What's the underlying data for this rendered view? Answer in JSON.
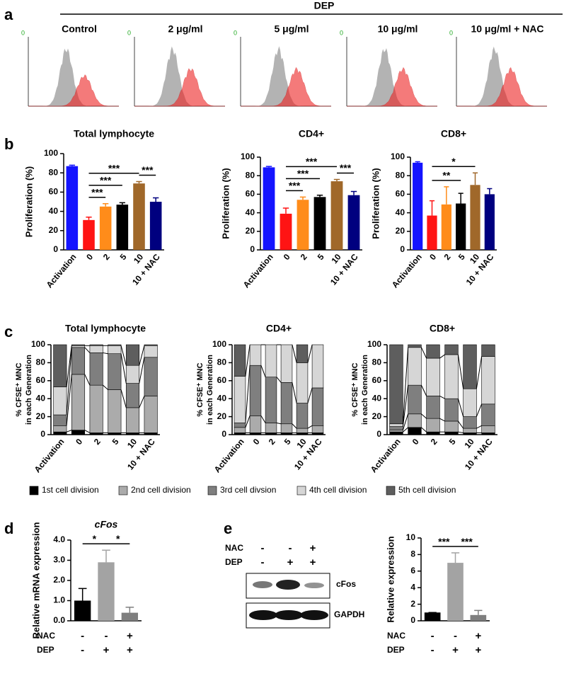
{
  "panel_letters": [
    "a",
    "b",
    "c",
    "d",
    "e"
  ],
  "histograms": {
    "group": "DEP",
    "corner_label": "0",
    "panels": [
      "Control",
      "2 μg/ml",
      "5 μg/ml",
      "10 μg/ml",
      "10 μg/ml + NAC"
    ]
  },
  "blot": {
    "conditions": [
      {
        "name": "NAC",
        "values": [
          "-",
          "-",
          "+"
        ]
      },
      {
        "name": "DEP",
        "values": [
          "-",
          "+",
          "+"
        ]
      }
    ],
    "bands": [
      "cFos",
      "GAPDH"
    ]
  },
  "chart_data": [
    {
      "type": "bar",
      "title": "Total lymphocyte",
      "ylabel": "Proliferation (%)",
      "categories": [
        "Activation",
        "0",
        "2",
        "5",
        "10",
        "10 + NAC"
      ],
      "values": [
        87,
        31,
        45,
        47,
        69,
        50
      ],
      "errors": [
        1,
        3,
        3,
        2,
        2,
        4
      ],
      "colors": [
        "#1414ff",
        "#ff1414",
        "#ff8c1a",
        "#000000",
        "#a0682a",
        "#00007f"
      ],
      "ylim": [
        0,
        100
      ],
      "yticks": [
        0,
        20,
        40,
        60,
        80,
        100
      ],
      "significance": [
        {
          "label": "***",
          "from": 1,
          "to": 2
        },
        {
          "label": "***",
          "from": 1,
          "to": 3
        },
        {
          "label": "***",
          "from": 1,
          "to": 4
        },
        {
          "label": "***",
          "from": 4,
          "to": 5
        }
      ]
    },
    {
      "type": "bar",
      "title": "CD4+",
      "ylabel": "Proliferation (%)",
      "categories": [
        "Activation",
        "0",
        "2",
        "5",
        "10",
        "10 + NAC"
      ],
      "values": [
        89,
        39,
        54,
        57,
        74,
        59
      ],
      "errors": [
        1,
        6,
        3,
        2,
        2,
        4
      ],
      "colors": [
        "#1414ff",
        "#ff1414",
        "#ff8c1a",
        "#000000",
        "#a0682a",
        "#00007f"
      ],
      "ylim": [
        0,
        100
      ],
      "yticks": [
        0,
        20,
        40,
        60,
        80,
        100
      ],
      "significance": [
        {
          "label": "***",
          "from": 1,
          "to": 2
        },
        {
          "label": "***",
          "from": 1,
          "to": 3
        },
        {
          "label": "***",
          "from": 1,
          "to": 4
        },
        {
          "label": "***",
          "from": 4,
          "to": 5
        }
      ]
    },
    {
      "type": "bar",
      "title": "CD8+",
      "ylabel": "Proliferation (%)",
      "categories": [
        "Activation",
        "0",
        "2",
        "5",
        "10",
        "10 + NAC"
      ],
      "values": [
        94,
        37,
        49,
        50,
        70,
        60
      ],
      "errors": [
        1,
        16,
        19,
        11,
        13,
        6
      ],
      "colors": [
        "#1414ff",
        "#ff1414",
        "#ff8c1a",
        "#000000",
        "#a0682a",
        "#00007f"
      ],
      "ylim": [
        0,
        100
      ],
      "yticks": [
        0,
        20,
        40,
        60,
        80,
        100
      ],
      "significance": [
        {
          "label": "**",
          "from": 1,
          "to": 3
        },
        {
          "label": "*",
          "from": 1,
          "to": 4
        }
      ]
    },
    {
      "type": "stacked_bar",
      "title": "Total lymphocyte",
      "ylabel": [
        "% CFSE⁺ MNC",
        "in each Generation"
      ],
      "categories": [
        "Activation",
        "0",
        "2",
        "5",
        "10",
        "10 + NAC"
      ],
      "ylim": [
        0,
        100
      ],
      "yticks": [
        0,
        20,
        40,
        60,
        80,
        100
      ],
      "series": [
        {
          "name": "1st cell division",
          "color": "#000000",
          "values": [
            3,
            5,
            2,
            2,
            2,
            2
          ]
        },
        {
          "name": "2nd cell division",
          "color": "#ababab",
          "values": [
            7,
            62,
            53,
            48,
            28,
            41
          ]
        },
        {
          "name": "3rd cell divsion",
          "color": "#7f7f7f",
          "values": [
            12,
            30,
            36,
            40,
            27,
            43
          ]
        },
        {
          "name": "4th cell division",
          "color": "#d6d6d6",
          "values": [
            31,
            2,
            8,
            9,
            20,
            13
          ]
        },
        {
          "name": "5th cell division",
          "color": "#5e5e5e",
          "values": [
            47,
            1,
            1,
            1,
            23,
            1
          ]
        }
      ]
    },
    {
      "type": "stacked_bar",
      "title": "CD4+",
      "ylabel": [
        "% CFSE⁺ MNC",
        "in each Generation"
      ],
      "categories": [
        "Activation",
        "0",
        "2",
        "5",
        "10",
        "10 + NAC"
      ],
      "ylim": [
        0,
        100
      ],
      "yticks": [
        0,
        20,
        40,
        60,
        80,
        100
      ],
      "series": [
        {
          "color": "#000000",
          "values": [
            2,
            2,
            2,
            2,
            2,
            2
          ]
        },
        {
          "color": "#ababab",
          "values": [
            6,
            19,
            11,
            10,
            5,
            8
          ]
        },
        {
          "color": "#7f7f7f",
          "values": [
            5,
            56,
            51,
            46,
            28,
            42
          ]
        },
        {
          "color": "#d6d6d6",
          "values": [
            52,
            23,
            36,
            42,
            45,
            48
          ]
        },
        {
          "color": "#5e5e5e",
          "values": [
            35,
            0,
            0,
            0,
            20,
            0
          ]
        }
      ]
    },
    {
      "type": "stacked_bar",
      "title": "CD8+",
      "ylabel": [
        "% CFSE⁺ MNC",
        "in each Generation"
      ],
      "categories": [
        "Activation",
        "0",
        "2",
        "5",
        "10",
        "10 + NAC"
      ],
      "ylim": [
        0,
        100
      ],
      "yticks": [
        0,
        20,
        40,
        60,
        80,
        100
      ],
      "series": [
        {
          "color": "#000000",
          "values": [
            3,
            8,
            3,
            3,
            2,
            2
          ]
        },
        {
          "color": "#ababab",
          "values": [
            2,
            15,
            15,
            12,
            5,
            8
          ]
        },
        {
          "color": "#7f7f7f",
          "values": [
            4,
            32,
            25,
            25,
            13,
            24
          ]
        },
        {
          "color": "#d6d6d6",
          "values": [
            3,
            42,
            42,
            49,
            31,
            53
          ]
        },
        {
          "color": "#5e5e5e",
          "values": [
            88,
            3,
            15,
            11,
            49,
            13
          ]
        }
      ]
    },
    {
      "type": "bar",
      "title": "cFos",
      "ylabel": "Relative mRNA expression",
      "values": [
        1.0,
        2.9,
        0.4
      ],
      "errors": [
        0.6,
        0.6,
        0.27
      ],
      "colors": [
        "#000000",
        "#a3a3a3",
        "#7f7f7f"
      ],
      "ylim": [
        0,
        4
      ],
      "yticks": [
        {
          "value": 0,
          "label": "0.0"
        },
        {
          "value": 1,
          "label": "1.0"
        },
        {
          "value": 2,
          "label": "2.0"
        },
        {
          "value": 3,
          "label": "3.0"
        },
        {
          "value": 4,
          "label": "4.0"
        }
      ],
      "conditions": [
        {
          "name": "NAC",
          "values": [
            "-",
            "-",
            "+"
          ]
        },
        {
          "name": "DEP",
          "values": [
            "-",
            "+",
            "+"
          ]
        }
      ],
      "significance": [
        {
          "label": "*",
          "from": 0,
          "to": 1
        },
        {
          "label": "*",
          "from": 1,
          "to": 2
        }
      ]
    },
    {
      "type": "bar",
      "ylabel": "Relative expression",
      "values": [
        1,
        7,
        0.7
      ],
      "errors": [
        0,
        1.2,
        0.55
      ],
      "colors": [
        "#000000",
        "#a3a3a3",
        "#7f7f7f"
      ],
      "ylim": [
        0,
        10
      ],
      "yticks": [
        0,
        2,
        4,
        6,
        8,
        10
      ],
      "conditions": [
        {
          "name": "NAC",
          "values": [
            "-",
            "-",
            "+"
          ]
        },
        {
          "name": "DEP",
          "values": [
            "-",
            "+",
            "+"
          ]
        }
      ],
      "significance": [
        {
          "label": "***",
          "from": 0,
          "to": 1
        },
        {
          "label": "***",
          "from": 1,
          "to": 2
        }
      ]
    }
  ]
}
